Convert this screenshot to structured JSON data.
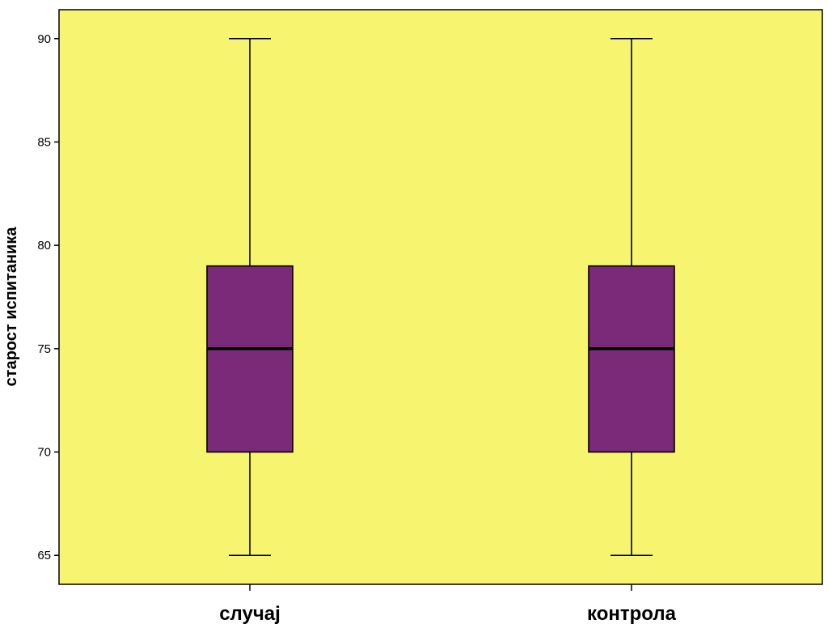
{
  "chart_data": {
    "type": "box",
    "title": "",
    "xlabel": "",
    "ylabel": "старост испитаника",
    "categories": [
      "случај",
      "контрола"
    ],
    "series": [
      {
        "boxes": [
          {
            "category": "случај",
            "min": 65,
            "q1": 70,
            "median": 75,
            "q3": 79,
            "max": 90
          },
          {
            "category": "контрола",
            "min": 65,
            "q1": 70,
            "median": 75,
            "q3": 79,
            "max": 90
          }
        ]
      }
    ],
    "yticks": [
      65,
      70,
      75,
      80,
      85,
      90
    ],
    "ylim": [
      63.6,
      91.4
    ],
    "grid": false,
    "colors": {
      "background": "#f7f570",
      "box_fill": "#7b2a79",
      "stroke": "#000000"
    }
  }
}
